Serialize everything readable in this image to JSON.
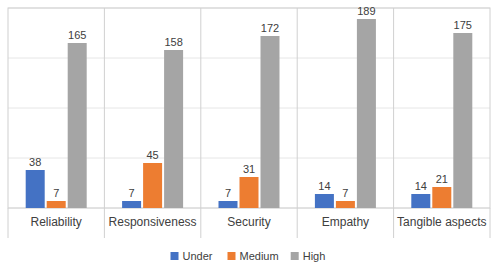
{
  "chart_data": {
    "type": "bar",
    "categories": [
      "Reliability",
      "Responsiveness",
      "Security",
      "Empathy",
      "Tangible aspects"
    ],
    "series": [
      {
        "name": "Under",
        "color": "#4472c4",
        "values": [
          38,
          7,
          7,
          14,
          14
        ]
      },
      {
        "name": "Medium",
        "color": "#ed7d31",
        "values": [
          7,
          45,
          31,
          7,
          21
        ]
      },
      {
        "name": "High",
        "color": "#a5a5a5",
        "values": [
          165,
          158,
          172,
          189,
          175
        ]
      }
    ],
    "ylim": [
      0,
      200
    ],
    "yticks": [
      0,
      50,
      100,
      150,
      200
    ],
    "grid": true,
    "data_labels": true,
    "tick_labels": "x",
    "legend": "bottom"
  }
}
